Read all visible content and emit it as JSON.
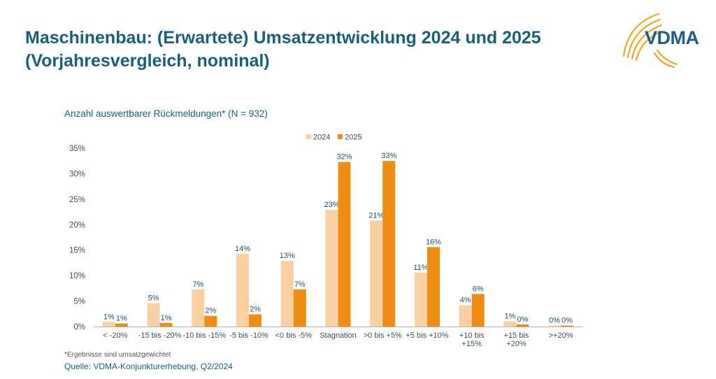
{
  "header": {
    "title_line1": "Maschinenbau: (Erwartete) Umsatzentwicklung 2024 und 2025",
    "title_line2": "(Vorjahresvergleich, nominal)",
    "logo_text": "VDMA"
  },
  "subtitle": "Anzahl auswertbarer Rückmeldungen* (N = 932)",
  "footnote": "*Ergebnisse sind umsatzgewichtet",
  "source": "Quelle: VDMA-Konjunkturerhebung, Q2/2024",
  "colors": {
    "title": "#17607a",
    "series_2024": "#fbd0a3",
    "series_2025": "#ef8c12",
    "logo_arcs": "#f0a622",
    "logo_text": "#1b5e86"
  },
  "chart_data": {
    "type": "bar",
    "categories": [
      [
        "< -20%"
      ],
      [
        "-15 bis -20%"
      ],
      [
        "-10 bis -15%"
      ],
      [
        "-5 bis -10%"
      ],
      [
        "<0 bis -5%"
      ],
      [
        "Stagnation"
      ],
      [
        ">0 bis +5%"
      ],
      [
        "+5 bis +10%"
      ],
      [
        "+10 bis",
        "+15%"
      ],
      [
        "+15 bis",
        "+20%"
      ],
      [
        ">+20%"
      ]
    ],
    "series": [
      {
        "name": "2024",
        "values": [
          0.9,
          4.6,
          7.3,
          14.3,
          12.9,
          22.9,
          20.8,
          10.6,
          4.2,
          1.0,
          0.2
        ],
        "labels": [
          "1%",
          "5%",
          "7%",
          "14%",
          "13%",
          "23%",
          "21%",
          "11%",
          "4%",
          "1%",
          "0%"
        ]
      },
      {
        "name": "2025",
        "values": [
          0.6,
          0.7,
          2.1,
          2.4,
          7.3,
          32.3,
          32.5,
          15.6,
          6.4,
          0.4,
          0.2
        ],
        "labels": [
          "1%",
          "1%",
          "2%",
          "2%",
          "7%",
          "32%",
          "33%",
          "16%",
          "6%",
          "0%",
          "0%"
        ]
      }
    ],
    "y_ticks": [
      "0%",
      "5%",
      "10%",
      "15%",
      "20%",
      "25%",
      "30%",
      "35%"
    ],
    "ylim": [
      0,
      35
    ],
    "legend_position": "top-center",
    "grid": false
  }
}
